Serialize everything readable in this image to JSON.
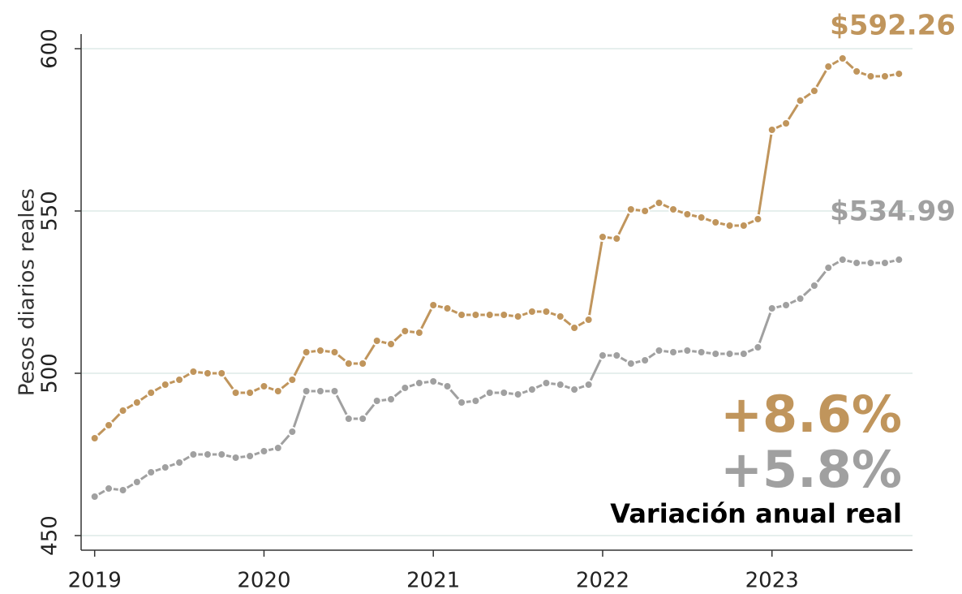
{
  "chart_data": {
    "type": "line",
    "y_label": "Pesos diarios reales",
    "x": [
      2019,
      2019.083,
      2019.167,
      2019.25,
      2019.333,
      2019.417,
      2019.5,
      2019.583,
      2019.667,
      2019.75,
      2019.833,
      2019.917,
      2020,
      2020.083,
      2020.167,
      2020.25,
      2020.333,
      2020.417,
      2020.5,
      2020.583,
      2020.667,
      2020.75,
      2020.833,
      2020.917,
      2021,
      2021.083,
      2021.167,
      2021.25,
      2021.333,
      2021.417,
      2021.5,
      2021.583,
      2021.667,
      2021.75,
      2021.833,
      2021.917,
      2022,
      2022.083,
      2022.167,
      2022.25,
      2022.333,
      2022.417,
      2022.5,
      2022.583,
      2022.667,
      2022.75,
      2022.833,
      2022.917,
      2023,
      2023.083,
      2023.167,
      2023.25,
      2023.333,
      2023.417,
      2023.5,
      2023.583,
      2023.667,
      2023.75
    ],
    "series": [
      {
        "color": "#c0955c",
        "end_label": "$592.26",
        "values": [
          480,
          484,
          488.5,
          491,
          494,
          496.5,
          498,
          500.5,
          500,
          500,
          494,
          494,
          496,
          494.5,
          498,
          506.5,
          507,
          506.5,
          503,
          503,
          510,
          509,
          513,
          512.5,
          521,
          520,
          518,
          518,
          518,
          518,
          517.5,
          519,
          519,
          517.5,
          514,
          516.5,
          542,
          541.5,
          550.5,
          550,
          552.5,
          550.5,
          549,
          548,
          546.5,
          545.5,
          545.5,
          547.5,
          575,
          577,
          584,
          587,
          594.5,
          597,
          593,
          591.5,
          591.5,
          592.26
        ]
      },
      {
        "color": "#a0a0a0",
        "end_label": "$534.99",
        "values": [
          462,
          464.5,
          464,
          466.5,
          469.5,
          471,
          472.5,
          475,
          475,
          475,
          474,
          474.5,
          476,
          477,
          482,
          494.5,
          494.5,
          494.5,
          486,
          486,
          491.5,
          492,
          495.5,
          497,
          497.5,
          496,
          491,
          491.5,
          494,
          494,
          493.5,
          495,
          497,
          496.5,
          495,
          496.5,
          505.5,
          505.5,
          503,
          504,
          507,
          506.5,
          507,
          506.5,
          506,
          506,
          506,
          508,
          520,
          521,
          523,
          527,
          532.5,
          535,
          534,
          534,
          534,
          534.99
        ]
      }
    ],
    "annotations": [
      {
        "text": "+8.6%",
        "color": "#c0955c"
      },
      {
        "text": "+5.8%",
        "color": "#a0a0a0"
      },
      {
        "text": "Variación anual real",
        "color": "#000000"
      }
    ],
    "xlim": [
      2018.92,
      2023.83
    ],
    "xticks": [
      2019,
      2020,
      2021,
      2022,
      2023
    ],
    "ylim": [
      445.5,
      604.5
    ],
    "yticks": [
      450,
      500,
      550,
      600
    ],
    "grid": true
  }
}
